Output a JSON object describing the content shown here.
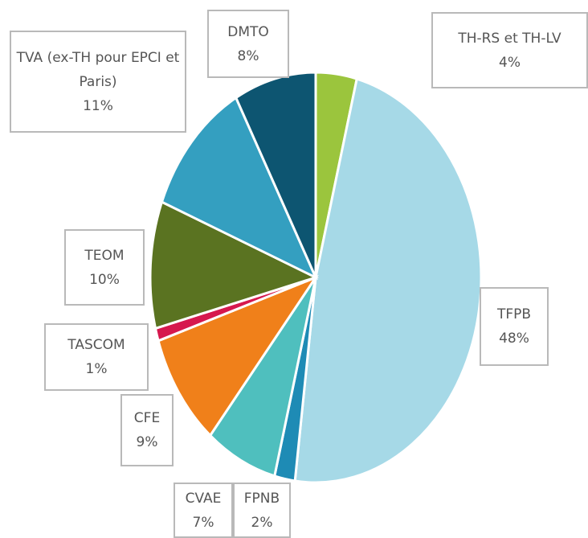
{
  "chart_data": {
    "type": "pie",
    "categories": [
      "TH-RS et TH-LV",
      "TFPB",
      "FPNB",
      "CVAE",
      "CFE",
      "TASCOM",
      "TEOM",
      "TVA (ex-TH pour EPCI et Paris)",
      "DMTO"
    ],
    "values": [
      4,
      48,
      2,
      7,
      9,
      1,
      10,
      11,
      8
    ],
    "value_labels": [
      "4%",
      "48%",
      "2%",
      "7%",
      "9%",
      "1%",
      "10%",
      "11%",
      "8%"
    ],
    "colors": [
      "#9bc53d",
      "#a6d9e7",
      "#1e8bb5",
      "#4fbfbe",
      "#f0801a",
      "#d6184e",
      "#5a7321",
      "#349fc0",
      "#0d5571"
    ]
  }
}
